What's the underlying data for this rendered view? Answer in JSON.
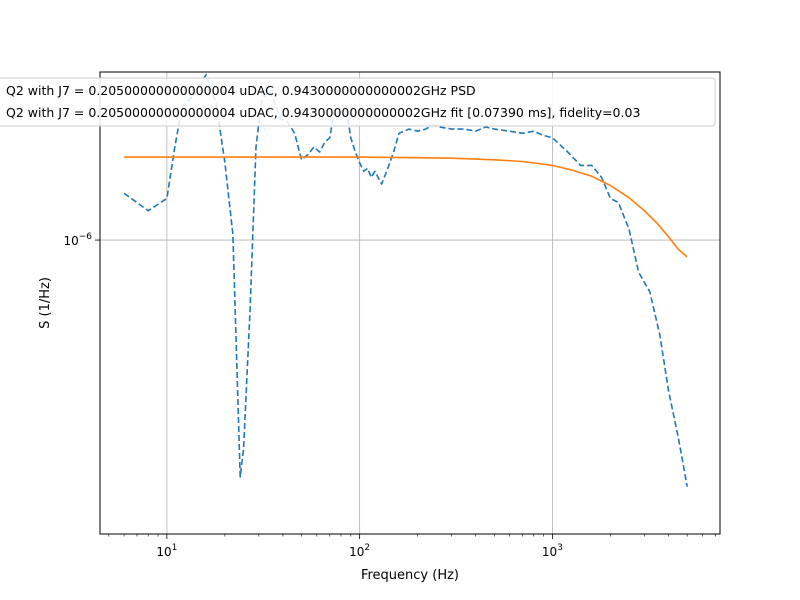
{
  "chart_data": {
    "type": "line",
    "title": "",
    "xlabel": "Frequency (Hz)",
    "ylabel": "S (1/Hz)",
    "xscale": "log",
    "yscale": "log",
    "xlim": [
      4.5,
      7400
    ],
    "ylim": [
      7.2e-08,
      4.5e-06
    ],
    "grid": true,
    "legend_placement": "top-left",
    "x_ticks": [
      {
        "value": 10,
        "base": "10",
        "exp": "1"
      },
      {
        "value": 100,
        "base": "10",
        "exp": "2"
      },
      {
        "value": 1000,
        "base": "10",
        "exp": "3"
      }
    ],
    "y_ticks": [
      {
        "value": 1e-06,
        "base": "10",
        "exp": "−6"
      }
    ],
    "series": [
      {
        "name": "Q2 with J7 = 0.20500000000000004 uDAC, 0.9430000000000002GHz PSD",
        "color": "#1f77b4",
        "style": "dashed",
        "x": [
          6,
          8,
          10,
          11,
          12,
          14,
          16,
          18,
          20,
          22,
          24,
          25,
          27,
          29,
          31,
          34,
          37,
          39,
          42,
          46,
          50,
          54,
          58,
          62,
          66,
          70,
          74,
          78,
          82,
          86,
          90,
          95,
          100,
          105,
          110,
          115,
          120,
          130,
          140,
          150,
          160,
          180,
          200,
          220,
          240,
          260,
          300,
          350,
          400,
          450,
          500,
          600,
          700,
          800,
          900,
          1000,
          1200,
          1400,
          1600,
          1800,
          2000,
          2200,
          2500,
          2800,
          3200,
          3600,
          4000,
          4500,
          5000
        ],
        "y": [
          1.52e-06,
          1.3e-06,
          1.45e-06,
          2.3e-06,
          3.3e-06,
          3.7e-06,
          4.4e-06,
          3.4e-06,
          2e-06,
          1.05e-06,
          1.2e-07,
          1.55e-07,
          5.3e-07,
          2.3e-06,
          3.5e-06,
          3.8e-06,
          3.3e-06,
          2.95e-06,
          2.9e-06,
          2.6e-06,
          2.05e-06,
          2.15e-06,
          2.3e-06,
          2.2e-06,
          2.4e-06,
          2.5e-06,
          3.2e-06,
          3.1e-06,
          3.2e-06,
          3.1e-06,
          2.5e-06,
          2.2e-06,
          2e-06,
          1.85e-06,
          1.9e-06,
          1.75e-06,
          1.85e-06,
          1.65e-06,
          1.9e-06,
          2.2e-06,
          2.6e-06,
          2.7e-06,
          2.65e-06,
          2.7e-06,
          2.8e-06,
          2.75e-06,
          2.7e-06,
          2.7e-06,
          2.65e-06,
          2.75e-06,
          2.7e-06,
          2.65e-06,
          2.6e-06,
          2.65e-06,
          2.55e-06,
          2.5e-06,
          2.2e-06,
          1.95e-06,
          1.95e-06,
          1.75e-06,
          1.45e-06,
          1.4e-06,
          1.1e-06,
          7.5e-07,
          6.3e-07,
          4.3e-07,
          2.6e-07,
          1.7e-07,
          1.1e-07
        ]
      },
      {
        "name": "Q2 with J7 = 0.20500000000000004 uDAC, 0.9430000000000002GHz fit [0.07390 ms], fidelity=0.03",
        "color": "#ff7f0e",
        "style": "solid",
        "x": [
          6,
          10,
          20,
          50,
          100,
          200,
          300,
          500,
          700,
          1000,
          1300,
          1600,
          2000,
          2500,
          3000,
          3500,
          4000,
          4500,
          5000
        ],
        "y": [
          2.1e-06,
          2.1e-06,
          2.1e-06,
          2.1e-06,
          2.1e-06,
          2.09e-06,
          2.08e-06,
          2.05e-06,
          2.02e-06,
          1.95e-06,
          1.86e-06,
          1.77e-06,
          1.63e-06,
          1.46e-06,
          1.3e-06,
          1.16e-06,
          1.03e-06,
          9.2e-07,
          8.6e-07
        ]
      }
    ]
  }
}
